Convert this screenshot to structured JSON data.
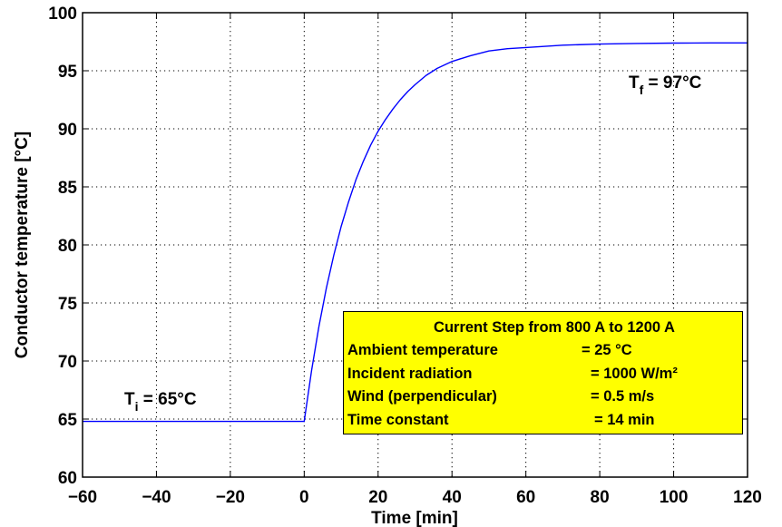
{
  "chart_data": {
    "type": "line",
    "xlabel": "Time [min]",
    "ylabel": "Conductor temperature [°C]",
    "xlim": [
      -60,
      120
    ],
    "ylim": [
      60,
      100
    ],
    "xticks": [
      -60,
      -40,
      -20,
      0,
      20,
      40,
      60,
      80,
      100,
      120
    ],
    "yticks": [
      60,
      65,
      70,
      75,
      80,
      85,
      90,
      95,
      100
    ],
    "xtick_labels": [
      "−60",
      "−40",
      "−20",
      "0",
      "20",
      "40",
      "60",
      "80",
      "100",
      "120"
    ],
    "ytick_labels": [
      "60",
      "65",
      "70",
      "75",
      "80",
      "85",
      "90",
      "95",
      "100"
    ],
    "grid": true,
    "line_color": "#0000ff",
    "series": [
      {
        "x": [
          -60,
          -40,
          -20,
          -10,
          0,
          2,
          4,
          6,
          8,
          10,
          12,
          14,
          16,
          18,
          20,
          22,
          24,
          26,
          28,
          30,
          33,
          36,
          40,
          45,
          50,
          55,
          60,
          70,
          80,
          90,
          100,
          110,
          120
        ],
        "y": [
          64.8,
          64.8,
          64.8,
          64.8,
          64.8,
          69.2,
          73.0,
          76.3,
          79.1,
          81.6,
          83.7,
          85.6,
          87.2,
          88.6,
          89.8,
          90.8,
          91.7,
          92.5,
          93.2,
          93.8,
          94.6,
          95.2,
          95.8,
          96.3,
          96.7,
          96.9,
          97.0,
          97.2,
          97.3,
          97.35,
          97.38,
          97.4,
          97.4
        ]
      }
    ],
    "annotations": {
      "initial": {
        "main": "T",
        "sub": "i",
        "rest": " = 65°C"
      },
      "final": {
        "main": "T",
        "sub": "f",
        "rest": " = 97°C"
      }
    },
    "info_box": {
      "background": "#ffff00",
      "title": "Current Step from 800 A to 1200 A",
      "rows": [
        {
          "label": "Ambient temperature",
          "value": "=  25 °C"
        },
        {
          "label": "Incident radiation",
          "value": "= 1000 W/m²"
        },
        {
          "label": "Wind (perpendicular)",
          "value": "= 0.5 m/s"
        },
        {
          "label": "Time constant",
          "value": "= 14 min"
        }
      ]
    }
  }
}
